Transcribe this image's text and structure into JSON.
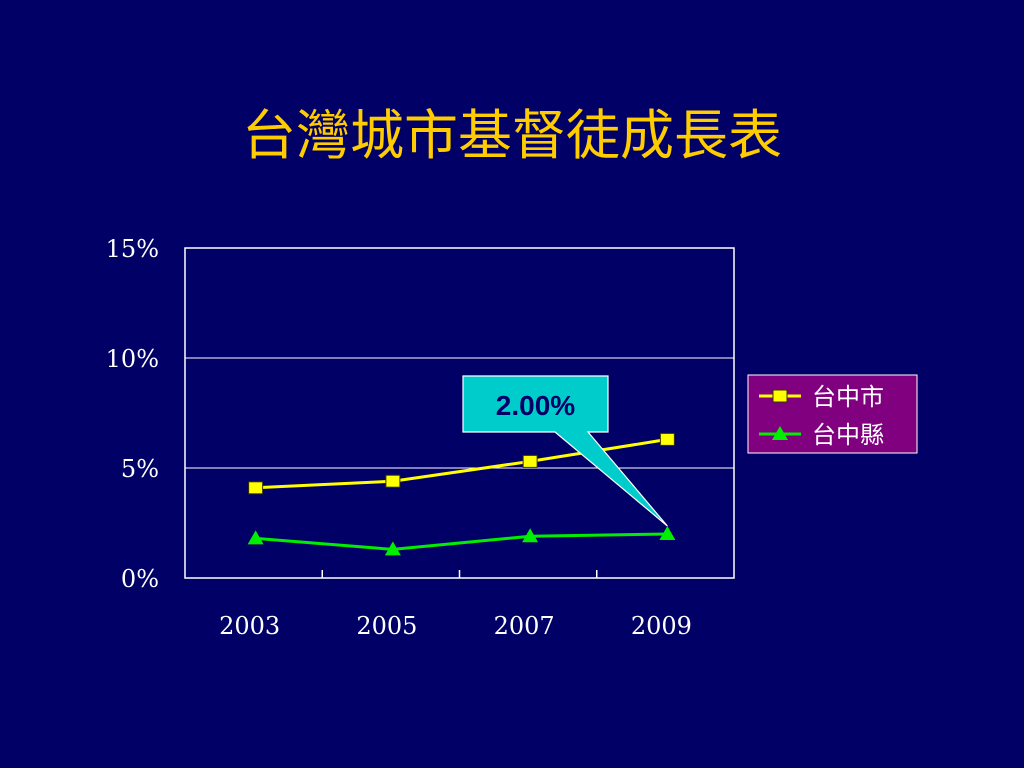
{
  "slide": {
    "title": "台灣城市基督徒成長表"
  },
  "chart_data": {
    "type": "line",
    "categories": [
      "2003",
      "2005",
      "2007",
      "2009"
    ],
    "series": [
      {
        "name": "台中市",
        "values": [
          4.1,
          4.4,
          5.3,
          6.3
        ],
        "color": "#ffff00",
        "marker": "square"
      },
      {
        "name": "台中縣",
        "values": [
          1.8,
          1.3,
          1.9,
          2.0
        ],
        "color": "#00ee00",
        "marker": "triangle"
      }
    ],
    "y_ticks": [
      "0%",
      "5%",
      "10%",
      "15%"
    ],
    "ylim": [
      0,
      15
    ],
    "y_tick_values": [
      0,
      5,
      10,
      15
    ],
    "grid": true,
    "legend_position": "right",
    "annotation": {
      "text": "2.00%",
      "points_to": {
        "series": 1,
        "category": "2009"
      }
    },
    "colors": {
      "background": "#000066",
      "plot_border": "#ffffff",
      "legend_bg": "#800080",
      "callout_bg": "#00cccc",
      "title": "#ffcc00"
    }
  }
}
